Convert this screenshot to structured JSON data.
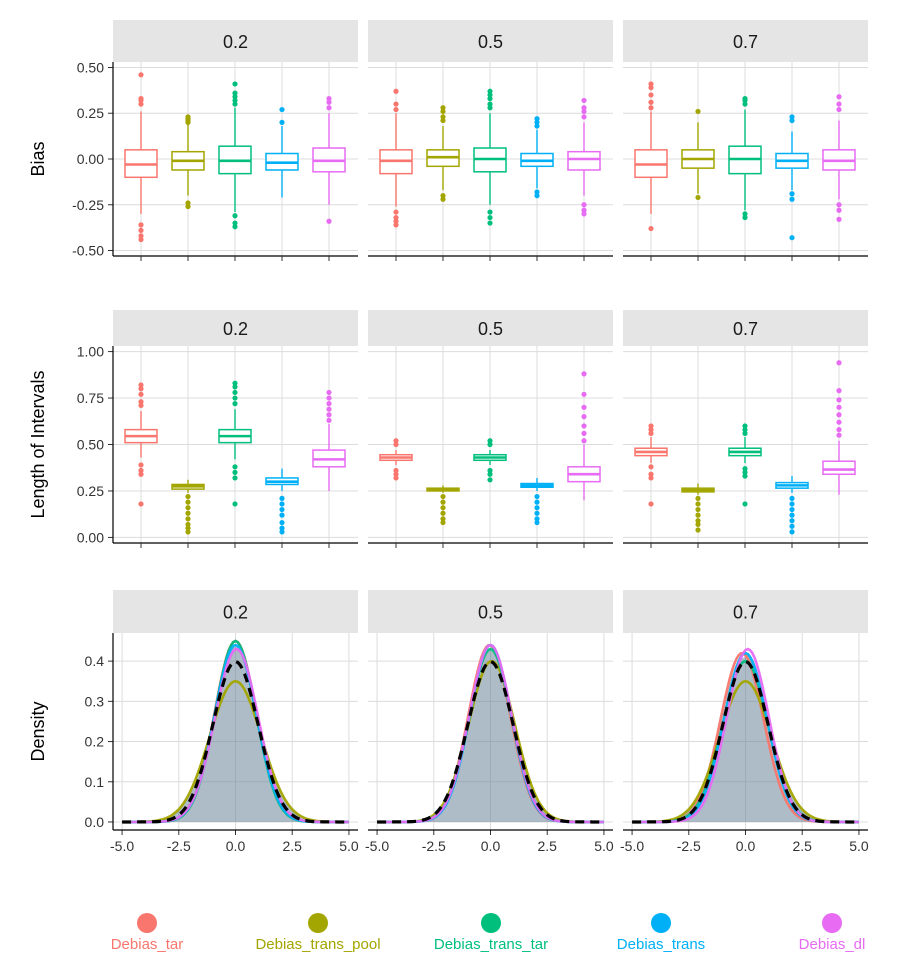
{
  "chart_data": [
    {
      "type": "boxplot",
      "ylabel": "Bias",
      "ylim": [
        -0.53,
        0.53
      ],
      "y_ticks": [
        "0.50",
        "0.25",
        "0.00",
        "-0.25",
        "-0.50"
      ],
      "y_tick_values": [
        0.5,
        0.25,
        0,
        -0.25,
        -0.5
      ],
      "facets": [
        {
          "label": "0.2",
          "boxes": [
            {
              "series": "Debias_tar",
              "q1": -0.1,
              "median": -0.03,
              "q3": 0.05,
              "wlo": -0.3,
              "whi": 0.26,
              "outliers": [
                0.46,
                0.33,
                0.32,
                0.3,
                -0.36,
                -0.39,
                -0.42,
                -0.44
              ]
            },
            {
              "series": "Debias_trans_pool",
              "q1": -0.06,
              "median": -0.01,
              "q3": 0.04,
              "wlo": -0.2,
              "whi": 0.19,
              "outliers": [
                0.23,
                0.22,
                0.21,
                0.2,
                -0.24,
                -0.26
              ]
            },
            {
              "series": "Debias_trans_tar",
              "q1": -0.08,
              "median": -0.01,
              "q3": 0.07,
              "wlo": -0.29,
              "whi": 0.28,
              "outliers": [
                0.41,
                0.36,
                0.34,
                0.32,
                0.3,
                -0.31,
                -0.35,
                -0.37
              ]
            },
            {
              "series": "Debias_trans",
              "q1": -0.06,
              "median": -0.02,
              "q3": 0.03,
              "wlo": -0.21,
              "whi": 0.18,
              "outliers": [
                0.27,
                0.2
              ]
            },
            {
              "series": "Debias_dl",
              "q1": -0.07,
              "median": -0.01,
              "q3": 0.06,
              "wlo": -0.25,
              "whi": 0.25,
              "outliers": [
                0.33,
                0.31,
                0.28,
                -0.34
              ]
            }
          ]
        },
        {
          "label": "0.5",
          "boxes": [
            {
              "series": "Debias_tar",
              "q1": -0.08,
              "median": -0.01,
              "q3": 0.05,
              "wlo": -0.26,
              "whi": 0.25,
              "outliers": [
                0.37,
                0.3,
                0.27,
                -0.29,
                -0.32,
                -0.34,
                -0.36
              ]
            },
            {
              "series": "Debias_trans_pool",
              "q1": -0.04,
              "median": 0.01,
              "q3": 0.05,
              "wlo": -0.17,
              "whi": 0.18,
              "outliers": [
                0.28,
                0.26,
                0.23,
                0.21,
                -0.2,
                -0.22
              ]
            },
            {
              "series": "Debias_trans_tar",
              "q1": -0.07,
              "median": 0.0,
              "q3": 0.06,
              "wlo": -0.25,
              "whi": 0.25,
              "outliers": [
                0.37,
                0.35,
                0.33,
                0.3,
                0.28,
                -0.29,
                -0.32,
                -0.35
              ]
            },
            {
              "series": "Debias_trans",
              "q1": -0.04,
              "median": -0.01,
              "q3": 0.03,
              "wlo": -0.16,
              "whi": 0.16,
              "outliers": [
                0.22,
                0.2,
                0.18,
                -0.18,
                -0.2
              ]
            },
            {
              "series": "Debias_dl",
              "q1": -0.06,
              "median": 0.0,
              "q3": 0.04,
              "wlo": -0.2,
              "whi": 0.2,
              "outliers": [
                0.32,
                0.28,
                0.26,
                0.23,
                -0.25,
                -0.28,
                -0.3
              ]
            }
          ]
        },
        {
          "label": "0.7",
          "boxes": [
            {
              "series": "Debias_tar",
              "q1": -0.1,
              "median": -0.03,
              "q3": 0.05,
              "wlo": -0.3,
              "whi": 0.26,
              "outliers": [
                0.41,
                0.39,
                0.35,
                0.31,
                0.28,
                -0.38
              ]
            },
            {
              "series": "Debias_trans_pool",
              "q1": -0.05,
              "median": 0.0,
              "q3": 0.05,
              "wlo": -0.19,
              "whi": 0.2,
              "outliers": [
                0.26,
                -0.21
              ]
            },
            {
              "series": "Debias_trans_tar",
              "q1": -0.08,
              "median": 0.0,
              "q3": 0.07,
              "wlo": -0.28,
              "whi": 0.27,
              "outliers": [
                0.33,
                0.32,
                0.3,
                -0.3,
                -0.32
              ]
            },
            {
              "series": "Debias_trans",
              "q1": -0.05,
              "median": -0.01,
              "q3": 0.03,
              "wlo": -0.17,
              "whi": 0.15,
              "outliers": [
                0.23,
                0.21,
                -0.19,
                -0.22,
                -0.43
              ]
            },
            {
              "series": "Debias_dl",
              "q1": -0.06,
              "median": -0.01,
              "q3": 0.05,
              "wlo": -0.22,
              "whi": 0.21,
              "outliers": [
                0.34,
                0.3,
                0.27,
                -0.25,
                -0.28,
                -0.33
              ]
            }
          ]
        }
      ]
    },
    {
      "type": "boxplot",
      "ylabel": "Length of Intervals",
      "ylim": [
        -0.03,
        1.03
      ],
      "y_ticks": [
        "1.00",
        "0.75",
        "0.50",
        "0.25",
        "0.00"
      ],
      "y_tick_values": [
        1,
        0.75,
        0.5,
        0.25,
        0
      ],
      "facets": [
        {
          "label": "0.2",
          "boxes": [
            {
              "series": "Debias_tar",
              "q1": 0.51,
              "median": 0.545,
              "q3": 0.58,
              "wlo": 0.43,
              "whi": 0.68,
              "outliers": [
                0.82,
                0.8,
                0.77,
                0.73,
                0.71,
                0.39,
                0.36,
                0.34,
                0.18
              ]
            },
            {
              "series": "Debias_trans_pool",
              "q1": 0.26,
              "median": 0.275,
              "q3": 0.285,
              "wlo": 0.24,
              "whi": 0.31,
              "outliers": [
                0.22,
                0.19,
                0.16,
                0.13,
                0.1,
                0.07,
                0.05,
                0.03
              ]
            },
            {
              "series": "Debias_trans_tar",
              "q1": 0.51,
              "median": 0.545,
              "q3": 0.58,
              "wlo": 0.42,
              "whi": 0.69,
              "outliers": [
                0.83,
                0.81,
                0.78,
                0.75,
                0.72,
                0.38,
                0.35,
                0.32,
                0.18
              ]
            },
            {
              "series": "Debias_trans",
              "q1": 0.285,
              "median": 0.3,
              "q3": 0.32,
              "wlo": 0.25,
              "whi": 0.37,
              "outliers": [
                0.21,
                0.18,
                0.15,
                0.12,
                0.08,
                0.05,
                0.03
              ]
            },
            {
              "series": "Debias_dl",
              "q1": 0.38,
              "median": 0.42,
              "q3": 0.47,
              "wlo": 0.25,
              "whi": 0.61,
              "outliers": [
                0.78,
                0.75,
                0.72,
                0.69,
                0.66,
                0.63
              ]
            }
          ]
        },
        {
          "label": "0.5",
          "boxes": [
            {
              "series": "Debias_tar",
              "q1": 0.415,
              "median": 0.43,
              "q3": 0.445,
              "wlo": 0.39,
              "whi": 0.47,
              "outliers": [
                0.52,
                0.5,
                0.36,
                0.34,
                0.32
              ]
            },
            {
              "series": "Debias_trans_pool",
              "q1": 0.25,
              "median": 0.258,
              "q3": 0.265,
              "wlo": 0.24,
              "whi": 0.28,
              "outliers": [
                0.22,
                0.19,
                0.16,
                0.13,
                0.1,
                0.08
              ]
            },
            {
              "series": "Debias_trans_tar",
              "q1": 0.415,
              "median": 0.43,
              "q3": 0.445,
              "wlo": 0.39,
              "whi": 0.47,
              "outliers": [
                0.52,
                0.5,
                0.36,
                0.34,
                0.31
              ]
            },
            {
              "series": "Debias_trans",
              "q1": 0.27,
              "median": 0.28,
              "q3": 0.29,
              "wlo": 0.25,
              "whi": 0.32,
              "outliers": [
                0.22,
                0.19,
                0.16,
                0.13,
                0.1,
                0.08
              ]
            },
            {
              "series": "Debias_dl",
              "q1": 0.3,
              "median": 0.34,
              "q3": 0.38,
              "wlo": 0.2,
              "whi": 0.5,
              "outliers": [
                0.88,
                0.77,
                0.7,
                0.65,
                0.6,
                0.56,
                0.52
              ]
            }
          ]
        },
        {
          "label": "0.7",
          "boxes": [
            {
              "series": "Debias_tar",
              "q1": 0.44,
              "median": 0.46,
              "q3": 0.48,
              "wlo": 0.4,
              "whi": 0.54,
              "outliers": [
                0.6,
                0.58,
                0.56,
                0.38,
                0.34,
                0.32,
                0.18
              ]
            },
            {
              "series": "Debias_trans_pool",
              "q1": 0.245,
              "median": 0.255,
              "q3": 0.265,
              "wlo": 0.23,
              "whi": 0.29,
              "outliers": [
                0.21,
                0.18,
                0.15,
                0.12,
                0.09,
                0.07,
                0.04
              ]
            },
            {
              "series": "Debias_trans_tar",
              "q1": 0.44,
              "median": 0.46,
              "q3": 0.48,
              "wlo": 0.4,
              "whi": 0.54,
              "outliers": [
                0.6,
                0.58,
                0.56,
                0.37,
                0.35,
                0.33,
                0.18
              ]
            },
            {
              "series": "Debias_trans",
              "q1": 0.265,
              "median": 0.28,
              "q3": 0.295,
              "wlo": 0.24,
              "whi": 0.33,
              "outliers": [
                0.21,
                0.18,
                0.15,
                0.12,
                0.09,
                0.06,
                0.03
              ]
            },
            {
              "series": "Debias_dl",
              "q1": 0.34,
              "median": 0.365,
              "q3": 0.41,
              "wlo": 0.23,
              "whi": 0.52,
              "outliers": [
                0.94,
                0.79,
                0.74,
                0.7,
                0.66,
                0.62,
                0.58,
                0.55
              ]
            }
          ]
        }
      ]
    },
    {
      "type": "density",
      "ylabel": "Density",
      "ylim": [
        -0.02,
        0.47
      ],
      "xlim": [
        -5.4,
        5.4
      ],
      "y_ticks": [
        "0.4",
        "0.3",
        "0.2",
        "0.1",
        "0.0"
      ],
      "y_tick_values": [
        0.4,
        0.3,
        0.2,
        0.1,
        0
      ],
      "x_ticks": [
        "-5.0",
        "-2.5",
        "0.0",
        "2.5",
        "5.0"
      ],
      "x_tick_values": [
        -5,
        -2.5,
        0,
        2.5,
        5
      ],
      "reference_curve": "standard normal (dashed black)",
      "facets": [
        {
          "label": "0.2",
          "peaks": [
            0.45,
            0.35,
            0.45,
            0.44,
            0.43
          ],
          "sds": [
            0.92,
            1.14,
            0.9,
            0.92,
            0.95
          ],
          "means": [
            0.0,
            0.0,
            0.0,
            0.0,
            0.05
          ]
        },
        {
          "label": "0.5",
          "peaks": [
            0.44,
            0.4,
            0.43,
            0.44,
            0.44
          ],
          "sds": [
            0.92,
            1.02,
            0.94,
            0.91,
            0.93
          ],
          "means": [
            -0.05,
            0.05,
            0.0,
            0.0,
            0.0
          ]
        },
        {
          "label": "0.7",
          "peaks": [
            0.42,
            0.35,
            0.4,
            0.42,
            0.43
          ],
          "sds": [
            0.95,
            1.14,
            1.0,
            0.95,
            0.93
          ],
          "means": [
            -0.15,
            0.0,
            0.0,
            0.0,
            0.1
          ]
        }
      ]
    }
  ],
  "legend": {
    "items": [
      {
        "label": "Debias_tar",
        "color": "#F8766D"
      },
      {
        "label": "Debias_trans_pool",
        "color": "#A3A500"
      },
      {
        "label": "Debias_trans_tar",
        "color": "#00BF7D"
      },
      {
        "label": "Debias_trans",
        "color": "#00B0F6"
      },
      {
        "label": "Debias_dl",
        "color": "#E76BF3"
      }
    ]
  },
  "colors": {
    "strip_bg": "#e5e5e5",
    "grid": "#dcdcdc",
    "axis": "#000000",
    "fill": "#6b8599"
  }
}
